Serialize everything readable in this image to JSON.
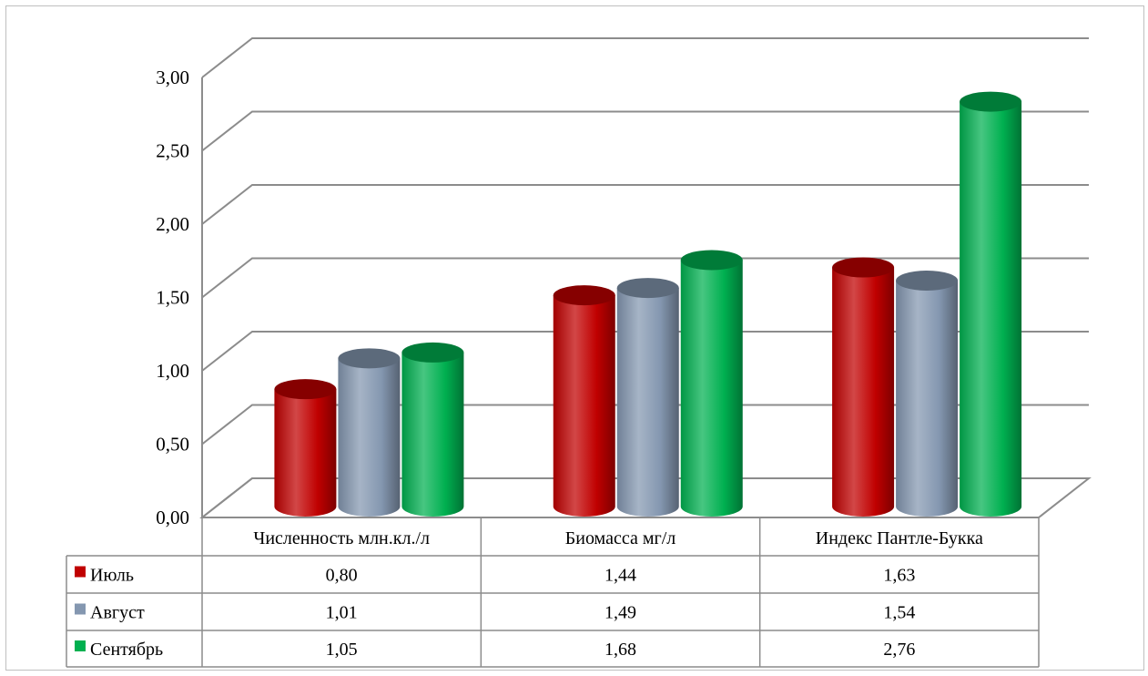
{
  "chart_data": {
    "type": "bar",
    "style": "3d-cylinder",
    "categories": [
      "Численность млн.кл./л",
      "Биомасса мг/л",
      "Индекс Пантле-Букка"
    ],
    "series": [
      {
        "name": "Июль",
        "values": [
          0.8,
          1.44,
          1.63
        ],
        "labels": [
          "0,80",
          "1,44",
          "1,63"
        ],
        "color": "#c00000"
      },
      {
        "name": "Август",
        "values": [
          1.01,
          1.49,
          1.54
        ],
        "labels": [
          "1,01",
          "1,49",
          "1,54"
        ],
        "color": "#8497b0"
      },
      {
        "name": "Сентябрь",
        "values": [
          1.05,
          1.68,
          2.76
        ],
        "labels": [
          "1,05",
          "1,68",
          "2,76"
        ],
        "color": "#00b050"
      }
    ],
    "yticks": [
      "0,00",
      "0,50",
      "1,00",
      "1,50",
      "2,00",
      "2,50",
      "3,00"
    ],
    "ylim": [
      0,
      3
    ],
    "grid": true,
    "legend": "data-table"
  }
}
